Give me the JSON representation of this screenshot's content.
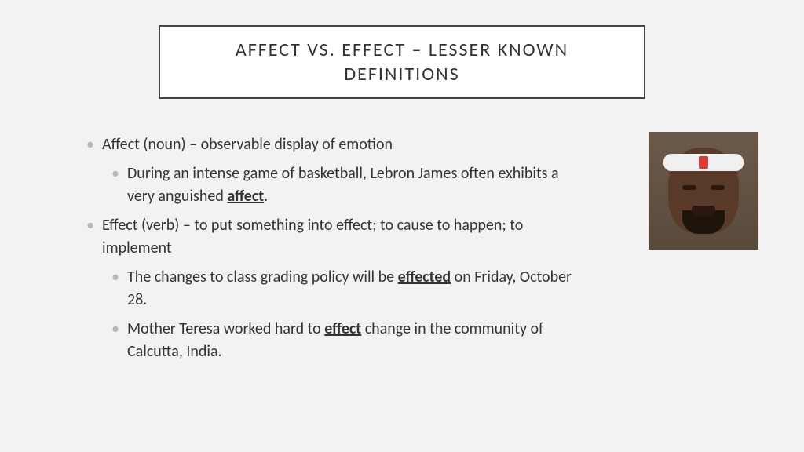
{
  "colors": {
    "background": "#f2f2f2",
    "title_border": "#444444",
    "title_bg": "#ffffff",
    "text": "#333333",
    "bullet": "#b8b8b8"
  },
  "typography": {
    "title_fontsize": 24,
    "title_letter_spacing": 2,
    "body_fontsize": 20,
    "line_height": 1.45
  },
  "title": "AFFECT VS. EFFECT – LESSER KNOWN DEFINITIONS",
  "bullets": {
    "b1_pre": "Affect (noun) – observable display of emotion",
    "b1a_pre": "During an intense game of basketball, Lebron James often exhibits a very anguished ",
    "b1a_u": "affect",
    "b1a_post": ".",
    "b2_pre": "Effect (verb) – to put something into effect; to cause to happen; to implement",
    "b2a_pre": "The changes to class grading policy will be ",
    "b2a_u": "effected",
    "b2a_post": " on Friday, October 28.",
    "b2b_pre": "Mother Teresa worked hard to ",
    "b2b_u": "effect",
    "b2b_post": " change in the community of Calcutta, India."
  },
  "image": {
    "alt": "Lebron James anguished face"
  }
}
